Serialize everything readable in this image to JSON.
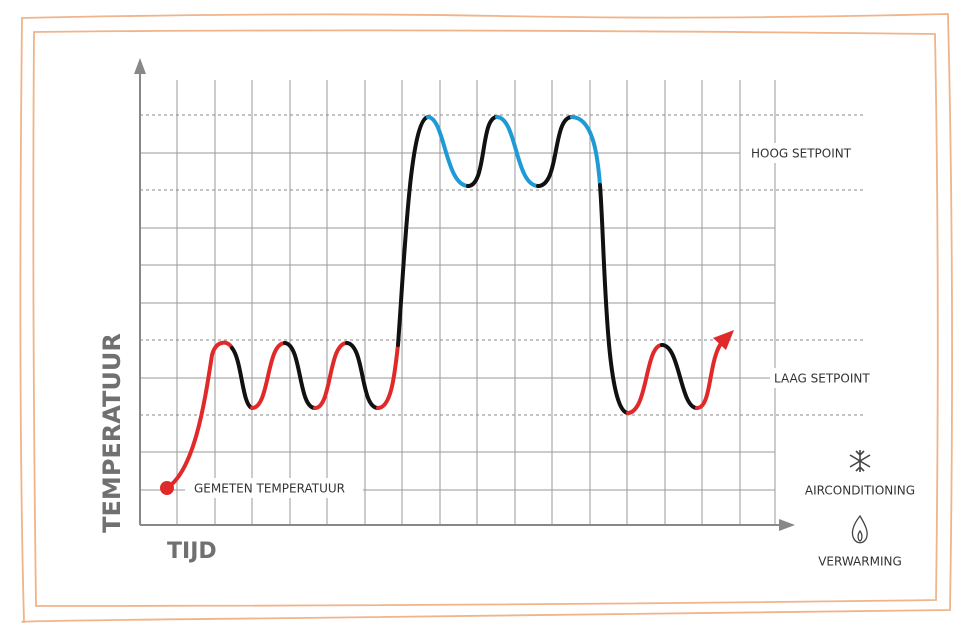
{
  "axes": {
    "y_label": "TEMPERATUUR",
    "x_label": "TIJD"
  },
  "labels": {
    "high_setpoint": "HOOG SETPOINT",
    "low_setpoint": "LAAG SETPOINT",
    "measured": "GEMETEN TEMPERATUUR"
  },
  "legend": {
    "cooling": "AIRCONDITIONING",
    "heating": "VERWARMING"
  }
}
